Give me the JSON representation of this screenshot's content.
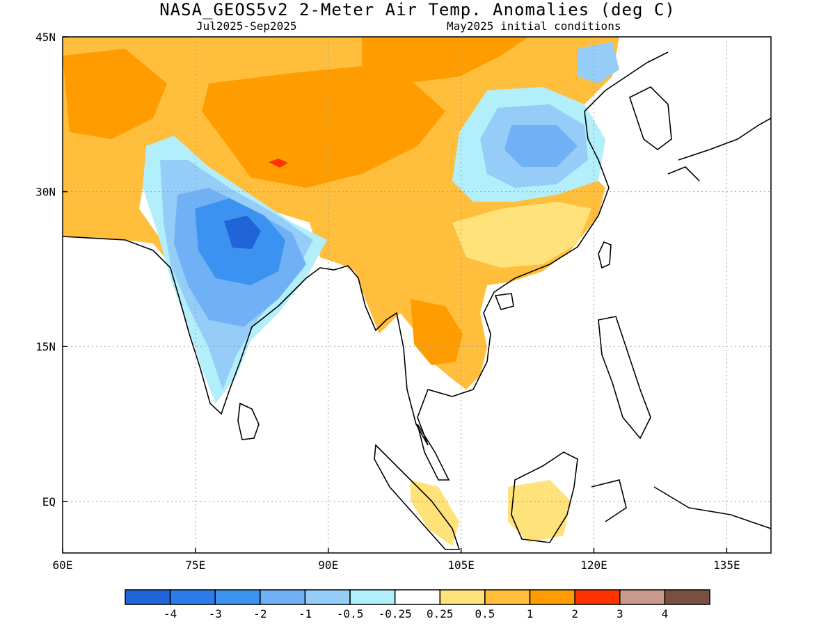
{
  "header": {
    "title": "NASA_GEOS5v2 2-Meter Air Temp. Anomalies (deg C)",
    "period": "Jul2025-Sep2025",
    "init": "May2025 initial conditions"
  },
  "map": {
    "lon_range": [
      60,
      140
    ],
    "lat_range": [
      -5,
      45
    ],
    "x_ticks": [
      {
        "lon": 60,
        "label": "60E"
      },
      {
        "lon": 75,
        "label": "75E"
      },
      {
        "lon": 90,
        "label": "90E"
      },
      {
        "lon": 105,
        "label": "105E"
      },
      {
        "lon": 120,
        "label": "120E"
      },
      {
        "lon": 135,
        "label": "135E"
      }
    ],
    "y_ticks": [
      {
        "lat": 45,
        "label": "45N"
      },
      {
        "lat": 30,
        "label": "30N"
      },
      {
        "lat": 15,
        "label": "15N"
      },
      {
        "lat": 0,
        "label": "EQ"
      }
    ],
    "grid": "dotted"
  },
  "colorbar": {
    "colors": [
      "#1f64d8",
      "#2d7cec",
      "#3c92f0",
      "#70b0f5",
      "#95ccf8",
      "#b3eefb",
      "#ffffff",
      "#ffe27a",
      "#ffbe3c",
      "#ff9c00",
      "#ff3300",
      "#c89a8c",
      "#7a5040"
    ],
    "labels": [
      "-4",
      "-3",
      "-2",
      "-1",
      "-0.5",
      "-0.25",
      "0.25",
      "0.5",
      "1",
      "2",
      "3",
      "4"
    ]
  }
}
